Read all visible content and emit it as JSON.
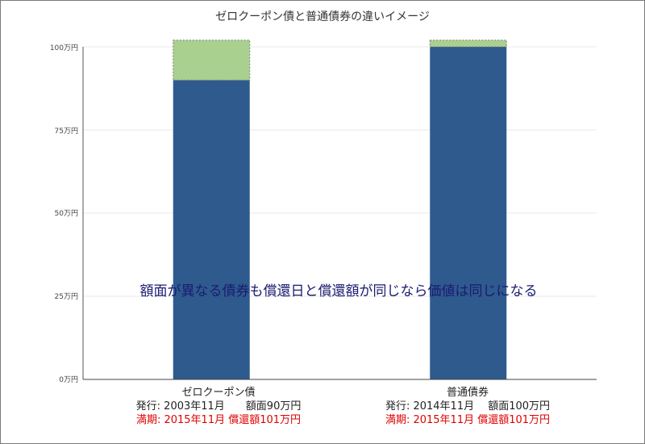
{
  "chart_data": {
    "type": "bar",
    "title": "ゼロクーポン債と普通債券の違いイメージ",
    "categories": [
      "ゼロクーポン債",
      "普通債券"
    ],
    "series": [
      {
        "values": [
          90,
          100
        ],
        "color": "#2e5a8e"
      },
      {
        "values": [
          12,
          2
        ],
        "color": "#a9d08e"
      }
    ],
    "yticks": [
      "0万円",
      "25万円",
      "50万円",
      "75万円",
      "100万円"
    ],
    "ylim": [
      0,
      100
    ],
    "grid": true,
    "annotation": "額面が異なる債券も償還日と償還額が同じなら価値は同じになる",
    "category_details": [
      {
        "issue": "発行: 2003年11月　　額面90万円",
        "maturity": "満期: 2015年11月 償還額101万円"
      },
      {
        "issue": "発行: 2014年11月　 額面100万円",
        "maturity": "満期: 2015年11月 償還額101万円"
      }
    ]
  }
}
